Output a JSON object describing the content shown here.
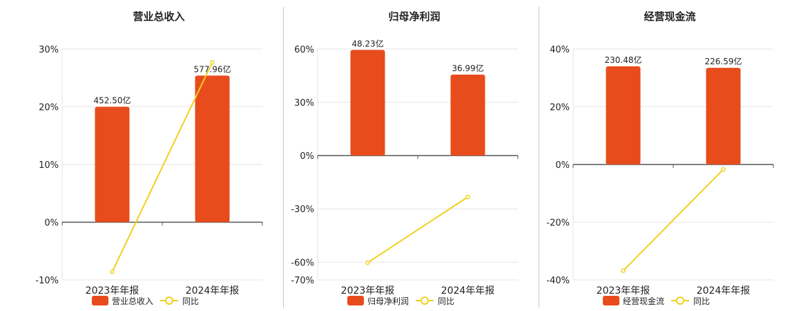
{
  "colors": {
    "bar": "#e84c1c",
    "line": "#f0d020",
    "grid": "#e6e6e6",
    "axis": "#555555",
    "text": "#222222"
  },
  "chart_data": [
    {
      "type": "bar",
      "title": "营业总收入",
      "categories": [
        "2023年年报",
        "2024年年报"
      ],
      "ylim": [
        -10,
        30
      ],
      "yticks": [
        -10,
        0,
        10,
        20,
        30
      ],
      "ytick_labels": [
        "-10%",
        "0%",
        "10%",
        "20%",
        "30%"
      ],
      "series": [
        {
          "name": "营业总收入",
          "kind": "bar",
          "values": [
            20,
            25.4
          ],
          "labels": [
            "452.50亿",
            "577.96亿"
          ]
        },
        {
          "name": "同比",
          "kind": "line",
          "values": [
            -8.6,
            27.7
          ]
        }
      ],
      "grid": true,
      "legend": "bottom"
    },
    {
      "type": "bar",
      "title": "归母净利润",
      "categories": [
        "2023年年报",
        "2024年年报"
      ],
      "ylim": [
        -70,
        60
      ],
      "yticks": [
        -70,
        -60,
        -30,
        0,
        30,
        60
      ],
      "ytick_labels": [
        "-70%",
        "-60%",
        "-30%",
        "0%",
        "30%",
        "60%"
      ],
      "series": [
        {
          "name": "归母净利润",
          "kind": "bar",
          "values": [
            59.5,
            45.6
          ],
          "labels": [
            "48.23亿",
            "36.99亿"
          ]
        },
        {
          "name": "同比",
          "kind": "line",
          "values": [
            -60.3,
            -23.3
          ]
        }
      ],
      "grid": true,
      "legend": "bottom"
    },
    {
      "type": "bar",
      "title": "经营现金流",
      "categories": [
        "2023年年报",
        "2024年年报"
      ],
      "ylim": [
        -40,
        40
      ],
      "yticks": [
        -40,
        -20,
        0,
        20,
        40
      ],
      "ytick_labels": [
        "-40%",
        "-20%",
        "0%",
        "20%",
        "40%"
      ],
      "series": [
        {
          "name": "经营现金流",
          "kind": "bar",
          "values": [
            34,
            33.5
          ],
          "labels": [
            "230.48亿",
            "226.59亿"
          ]
        },
        {
          "name": "同比",
          "kind": "line",
          "values": [
            -36.8,
            -1.7
          ]
        }
      ],
      "grid": true,
      "legend": "bottom"
    }
  ]
}
